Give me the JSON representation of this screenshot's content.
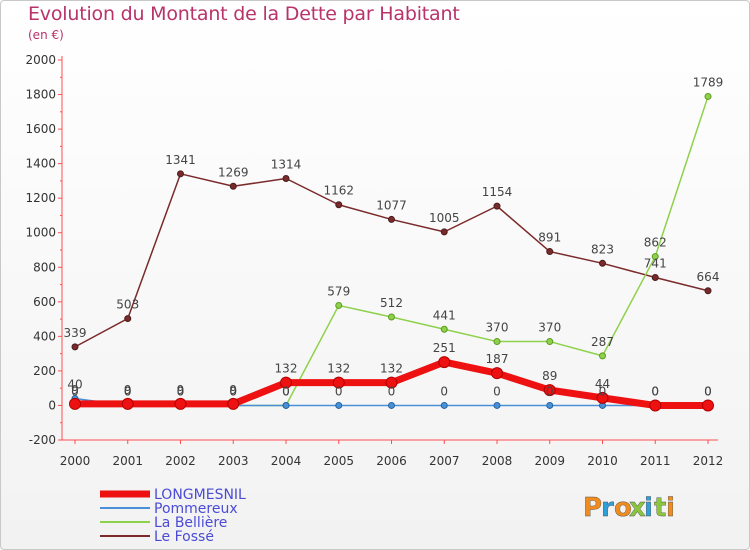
{
  "header": {
    "title": "Evolution du Montant de la Dette par Habitant",
    "unit": "(en €)"
  },
  "brand": {
    "text": "Proxiti",
    "colors": [
      "#f08c1e",
      "#2e9fd9",
      "#f08c1e",
      "#8cc63f",
      "#2e9fd9",
      "#8cc63f",
      "#f08c1e"
    ]
  },
  "chart_data": {
    "type": "line",
    "title": "Evolution du Montant de la Dette par Habitant",
    "subtitle": "(en €)",
    "x": [
      "2000",
      "2001",
      "2002",
      "2003",
      "2004",
      "2005",
      "2006",
      "2007",
      "2008",
      "2009",
      "2010",
      "2011",
      "2012"
    ],
    "ylim": [
      -200,
      2000
    ],
    "yticks": [
      "-200",
      "0",
      "200",
      "400",
      "600",
      "800",
      "1000",
      "1200",
      "1400",
      "1600",
      "1800",
      "2000"
    ],
    "grid": false,
    "legend_position": "bottom-left",
    "series": [
      {
        "name": "Le Fossé",
        "color": "#7a2a2a",
        "values": [
          339,
          503,
          1341,
          1269,
          1314,
          1162,
          1077,
          1005,
          1154,
          891,
          823,
          741,
          664
        ],
        "labels": [
          "339",
          "503",
          "1341",
          "1269",
          "1314",
          "1162",
          "1077",
          "1005",
          "1154",
          "891",
          "823",
          "741",
          "664"
        ]
      },
      {
        "name": "La Bellière",
        "color": "#8ed14a",
        "values": [
          0,
          0,
          0,
          0,
          0,
          579,
          512,
          441,
          370,
          370,
          287,
          862,
          1789
        ],
        "labels": [
          "0",
          "0",
          "0",
          "0",
          "0",
          "579",
          "512",
          "441",
          "370",
          "370",
          "287",
          "862",
          "1789"
        ]
      },
      {
        "name": "Pommereux",
        "color": "#4a90d9",
        "values": [
          40,
          0,
          0,
          0,
          0,
          0,
          0,
          0,
          0,
          0,
          0,
          0,
          0
        ],
        "labels": [
          "40",
          "0",
          "0",
          "0",
          "0",
          "0",
          "0",
          "0",
          "0",
          "0",
          "0",
          "0",
          "0"
        ]
      },
      {
        "name": "LONGMESNIL",
        "color": "#ee1111",
        "values": [
          9,
          9,
          9,
          9,
          132,
          132,
          132,
          251,
          187,
          89,
          44,
          0,
          0
        ],
        "labels": [
          "9",
          "9",
          "9",
          "9",
          "132",
          "132",
          "132",
          "251",
          "187",
          "89",
          "44",
          "0",
          "0"
        ]
      }
    ]
  }
}
